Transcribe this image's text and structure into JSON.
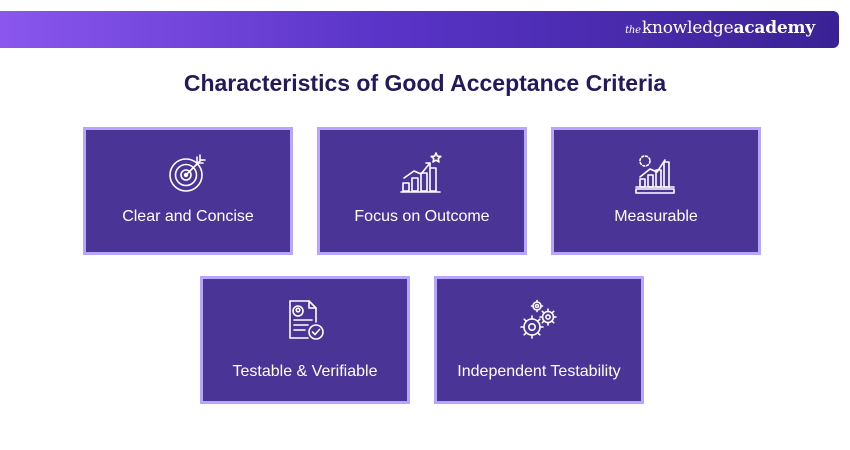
{
  "brand": {
    "prefix": "the",
    "name_light": "knowledge",
    "name_bold": "academy"
  },
  "title": "Characteristics of Good Acceptance Criteria",
  "cards": [
    {
      "label": "Clear and Concise",
      "icon": "target-icon"
    },
    {
      "label": "Focus on Outcome",
      "icon": "growth-chart-icon"
    },
    {
      "label": "Measurable",
      "icon": "bar-chart-icon"
    },
    {
      "label": "Testable & Verifiable",
      "icon": "verified-document-icon"
    },
    {
      "label": "Independent Testability",
      "icon": "gears-icon"
    }
  ],
  "colors": {
    "card_fill": "#4a3597",
    "card_border": "#b7a6ff",
    "title": "#24195a",
    "banner_start": "#8a56ee",
    "banner_end": "#3a2295"
  }
}
